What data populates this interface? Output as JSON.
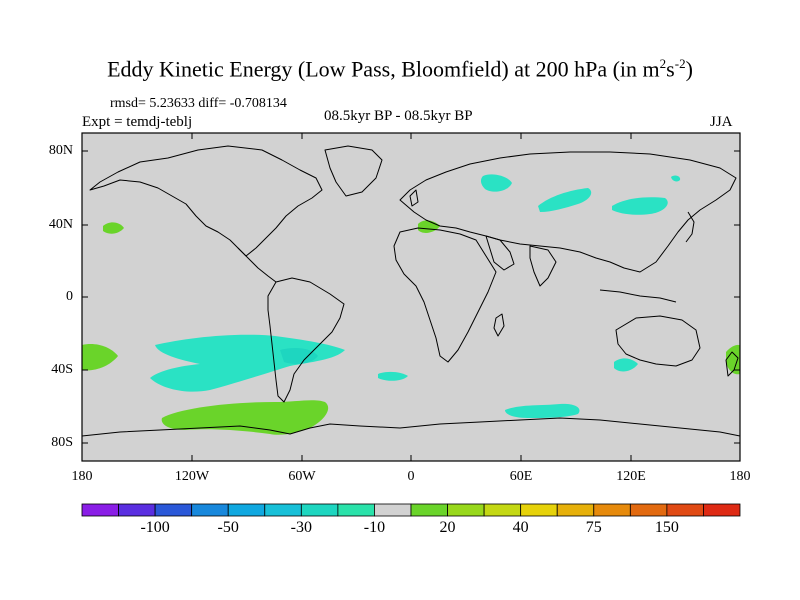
{
  "title": {
    "main": "Eddy Kinetic Energy (Low Pass, Bloomfield) at 200 hPa (in m",
    "sup1": "2",
    "mid": "s",
    "sup2": "-2",
    "end": ")"
  },
  "stats": "rmsd= 5.23633 diff= -0.708134",
  "expt": "Expt = temdj-teblj",
  "period": "08.5kyr BP - 08.5kyr BP",
  "season": "JJA",
  "y_ticks": [
    "80N",
    "40N",
    "0",
    "40S",
    "80S"
  ],
  "x_ticks": [
    "180",
    "120W",
    "60W",
    "0",
    "60E",
    "120E",
    "180"
  ],
  "colorbar": {
    "colors": [
      "#8a1ee6",
      "#5a2ee0",
      "#2a58d8",
      "#1888dc",
      "#10a8e0",
      "#18c0d8",
      "#1ed6c0",
      "#2ae2aa",
      "#d2d2d2",
      "#6ad42a",
      "#98d81c",
      "#c4d814",
      "#e6d20a",
      "#e6b00a",
      "#e68a0c",
      "#e26a10",
      "#e04a14",
      "#de2a14"
    ],
    "labels": [
      "-100",
      "-50",
      "-30",
      "-10",
      "20",
      "40",
      "75",
      "150"
    ]
  },
  "colors": {
    "ocean": "#d2d2d2",
    "cyan": "#2ae2c4",
    "green": "#6ad42a",
    "coast": "#000000"
  }
}
